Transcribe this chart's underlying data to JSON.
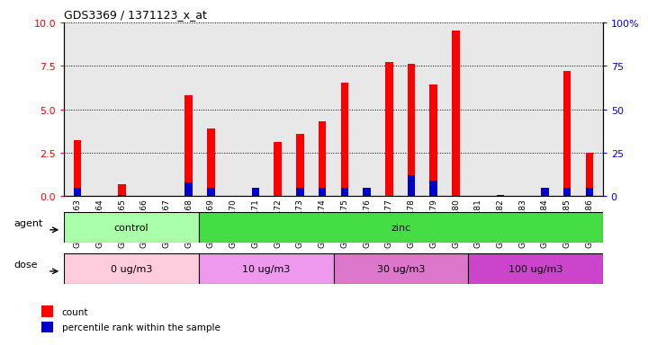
{
  "title": "GDS3369 / 1371123_x_at",
  "samples": [
    "GSM280163",
    "GSM280164",
    "GSM280165",
    "GSM280166",
    "GSM280167",
    "GSM280168",
    "GSM280169",
    "GSM280170",
    "GSM280171",
    "GSM280172",
    "GSM280173",
    "GSM280174",
    "GSM280175",
    "GSM280176",
    "GSM280177",
    "GSM280178",
    "GSM280179",
    "GSM280180",
    "GSM280181",
    "GSM280182",
    "GSM280183",
    "GSM280184",
    "GSM280185",
    "GSM280186"
  ],
  "count_values": [
    3.2,
    0.0,
    0.7,
    0.0,
    0.0,
    5.8,
    3.9,
    0.0,
    0.0,
    3.1,
    3.6,
    4.3,
    6.5,
    0.0,
    7.7,
    7.6,
    6.4,
    9.5,
    0.0,
    0.0,
    0.0,
    0.0,
    7.2,
    2.5
  ],
  "percentile_values_pct": [
    5,
    0,
    1,
    0,
    0.5,
    8,
    5,
    0,
    5,
    0.5,
    5,
    5,
    5,
    5,
    0.5,
    12,
    9,
    0,
    0,
    1,
    0,
    5,
    5,
    5
  ],
  "bar_color": "#ff0000",
  "percentile_color": "#0000cc",
  "ylim_left": [
    0,
    10
  ],
  "ylim_right": [
    0,
    100
  ],
  "yticks_left": [
    0,
    2.5,
    5.0,
    7.5,
    10.0
  ],
  "yticks_right": [
    0,
    25,
    50,
    75,
    100
  ],
  "agent_groups": [
    {
      "label": "control",
      "start": 0,
      "end": 5,
      "color": "#aaffaa"
    },
    {
      "label": "zinc",
      "start": 6,
      "end": 23,
      "color": "#44dd44"
    }
  ],
  "dose_groups": [
    {
      "label": "0 ug/m3",
      "start": 0,
      "end": 5,
      "color": "#ffccdd"
    },
    {
      "label": "10 ug/m3",
      "start": 6,
      "end": 11,
      "color": "#ee99ee"
    },
    {
      "label": "30 ug/m3",
      "start": 12,
      "end": 17,
      "color": "#dd77cc"
    },
    {
      "label": "100 ug/m3",
      "start": 18,
      "end": 23,
      "color": "#cc44cc"
    }
  ],
  "legend_items": [
    {
      "label": "count",
      "color": "#ff0000"
    },
    {
      "label": "percentile rank within the sample",
      "color": "#0000cc"
    }
  ],
  "chart_bg": "#e8e8e8",
  "bar_width": 0.35,
  "title_fontsize": 9,
  "tick_label_fontsize": 6.5,
  "axis_fontsize": 8,
  "row_label_fontsize": 8,
  "row_text_fontsize": 8
}
